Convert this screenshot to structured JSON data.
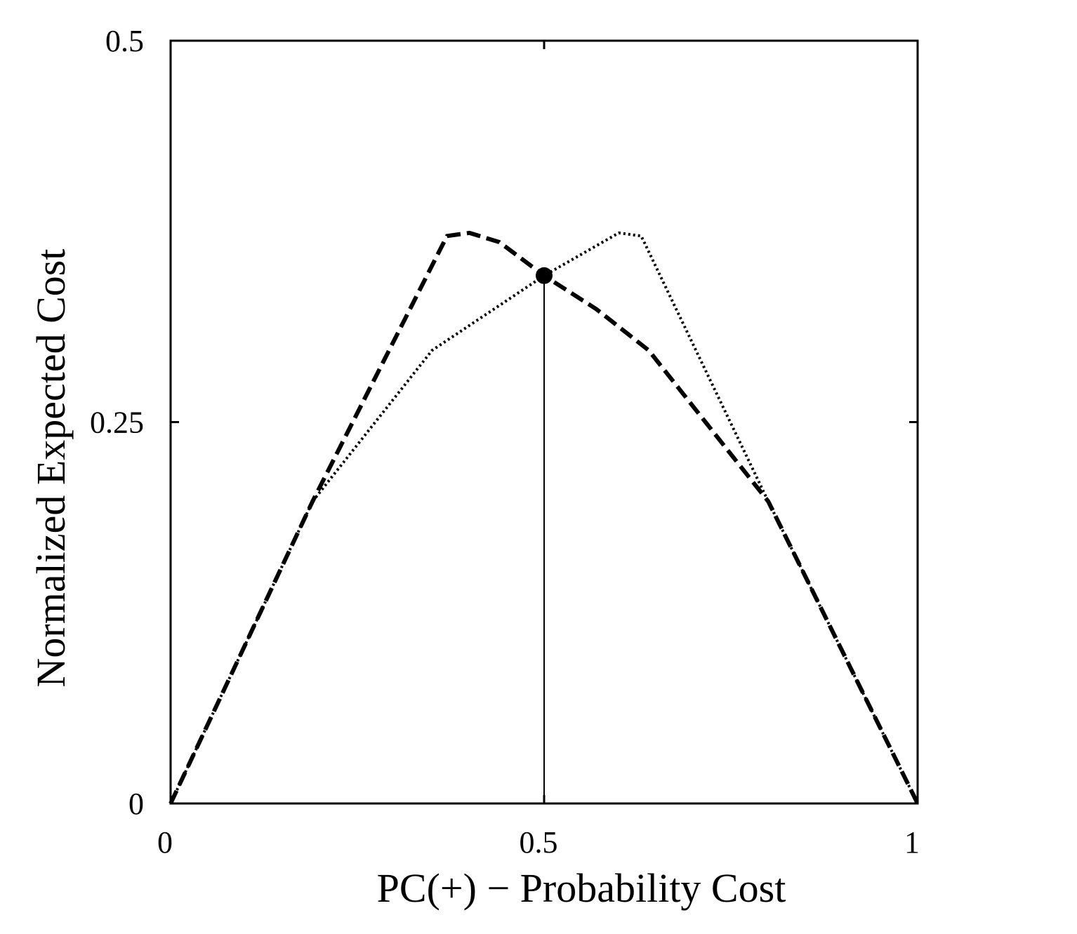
{
  "chart_data": {
    "type": "line",
    "title": "",
    "xlabel": "PC(+) − Probability Cost",
    "ylabel": "Normalized Expected Cost",
    "xlim": [
      0,
      1
    ],
    "ylim": [
      0,
      0.5
    ],
    "xticks": [
      {
        "value": 0,
        "label": "0"
      },
      {
        "value": 0.5,
        "label": "0.5"
      },
      {
        "value": 1,
        "label": "1"
      }
    ],
    "yticks": [
      {
        "value": 0,
        "label": "0"
      },
      {
        "value": 0.25,
        "label": "0.25"
      },
      {
        "value": 0.5,
        "label": "0.5"
      }
    ],
    "grid": false,
    "legend": "none",
    "series": [
      {
        "style": "dashed",
        "color": "#000000",
        "x": [
          0,
          0.19,
          0.37,
          0.4,
          0.44,
          0.5,
          0.57,
          0.64,
          0.8,
          1
        ],
        "y": [
          0,
          0.198,
          0.372,
          0.374,
          0.368,
          0.346,
          0.324,
          0.297,
          0.198,
          0
        ]
      },
      {
        "style": "dotted",
        "color": "#000000",
        "x": [
          0,
          0.19,
          0.35,
          0.5,
          0.6,
          0.63,
          0.8,
          1
        ],
        "y": [
          0,
          0.198,
          0.297,
          0.346,
          0.374,
          0.372,
          0.198,
          0
        ]
      }
    ],
    "marker": {
      "x": 0.5,
      "y": 0.346
    },
    "vertical_line": {
      "x": 0.5,
      "y_from": 0,
      "y_to": 0.346
    }
  }
}
